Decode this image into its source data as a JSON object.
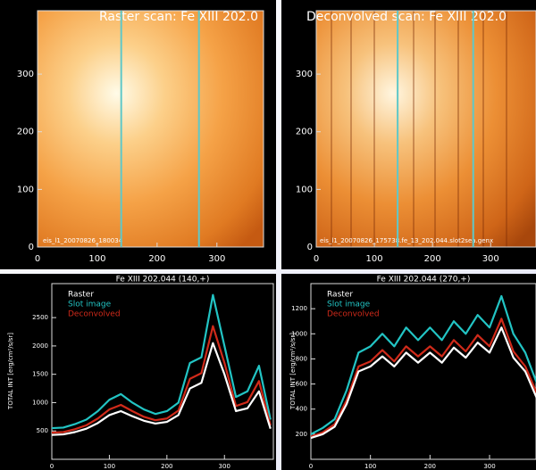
{
  "chart_data": [
    {
      "type": "image",
      "title": "Raster scan: Fe XIII 202.0",
      "file_label": "eis_l1_20070826_180034",
      "xlim": [
        0,
        378
      ],
      "ylim": [
        0,
        410
      ],
      "xticks": [
        0,
        100,
        200,
        300
      ],
      "yticks": [
        0,
        100,
        200,
        300
      ],
      "slices": [
        140,
        270
      ],
      "slice_color": "#5fc8c8"
    },
    {
      "type": "image",
      "title": "Deconvolved scan: Fe XIII 202.0",
      "file_label": "eis_l1_20070826_175738.fe_13_202.044.slot2sea.genx",
      "xlim": [
        0,
        378
      ],
      "ylim": [
        0,
        410
      ],
      "xticks": [
        0,
        100,
        200,
        300
      ],
      "yticks": [
        0,
        100,
        200,
        300
      ],
      "slices": [
        140,
        270
      ],
      "slice_color": "#5fc8c8"
    },
    {
      "type": "line",
      "title": "Fe XIII 202.044     (140,+)",
      "y_label": "TOTAL INT  [erg/cm²/s/sr]",
      "xlim": [
        0,
        385
      ],
      "ylim": [
        0,
        3100
      ],
      "xticks": [
        0,
        100,
        200,
        300
      ],
      "yticks": [
        500,
        1000,
        1500,
        2000,
        2500
      ],
      "x": [
        0,
        20,
        40,
        60,
        80,
        100,
        120,
        140,
        160,
        180,
        200,
        220,
        240,
        260,
        280,
        300,
        320,
        340,
        360,
        380
      ],
      "series": [
        {
          "name": "Raster",
          "color": "#ffffff",
          "values": [
            430,
            440,
            480,
            540,
            640,
            780,
            850,
            760,
            680,
            630,
            660,
            780,
            1250,
            1350,
            2050,
            1500,
            850,
            900,
            1200,
            540
          ]
        },
        {
          "name": "Slot image",
          "color": "#22c4c4",
          "values": [
            550,
            560,
            620,
            700,
            850,
            1050,
            1150,
            1000,
            880,
            800,
            850,
            1000,
            1700,
            1800,
            2900,
            2000,
            1100,
            1200,
            1650,
            700
          ]
        },
        {
          "name": "Deconvolved",
          "color": "#d02a1a",
          "values": [
            470,
            480,
            530,
            600,
            720,
            880,
            960,
            850,
            750,
            690,
            720,
            860,
            1420,
            1520,
            2350,
            1700,
            940,
            1010,
            1380,
            600
          ]
        }
      ]
    },
    {
      "type": "line",
      "title": "Fe XIII 202.044     (270,+)",
      "y_label": "TOTAL INT  [erg/cm²/s/sr]",
      "xlim": [
        0,
        378
      ],
      "ylim": [
        0,
        1400
      ],
      "xticks": [
        0,
        100,
        200,
        300
      ],
      "yticks": [
        200,
        400,
        600,
        800,
        1000,
        1200
      ],
      "x": [
        0,
        20,
        40,
        60,
        80,
        100,
        120,
        140,
        160,
        180,
        200,
        220,
        240,
        260,
        280,
        300,
        320,
        340,
        360,
        380
      ],
      "series": [
        {
          "name": "Raster",
          "color": "#ffffff",
          "values": [
            170,
            200,
            260,
            440,
            700,
            740,
            820,
            740,
            850,
            770,
            850,
            770,
            890,
            810,
            930,
            850,
            1050,
            810,
            700,
            480
          ]
        },
        {
          "name": "Slot image",
          "color": "#22c4c4",
          "values": [
            200,
            250,
            320,
            550,
            850,
            900,
            1000,
            900,
            1050,
            950,
            1050,
            950,
            1100,
            1000,
            1150,
            1050,
            1300,
            1000,
            850,
            600
          ]
        },
        {
          "name": "Deconvolved",
          "color": "#d02a1a",
          "values": [
            180,
            215,
            280,
            470,
            740,
            780,
            870,
            780,
            900,
            820,
            900,
            820,
            950,
            860,
            990,
            900,
            1120,
            860,
            740,
            520
          ]
        }
      ]
    }
  ]
}
